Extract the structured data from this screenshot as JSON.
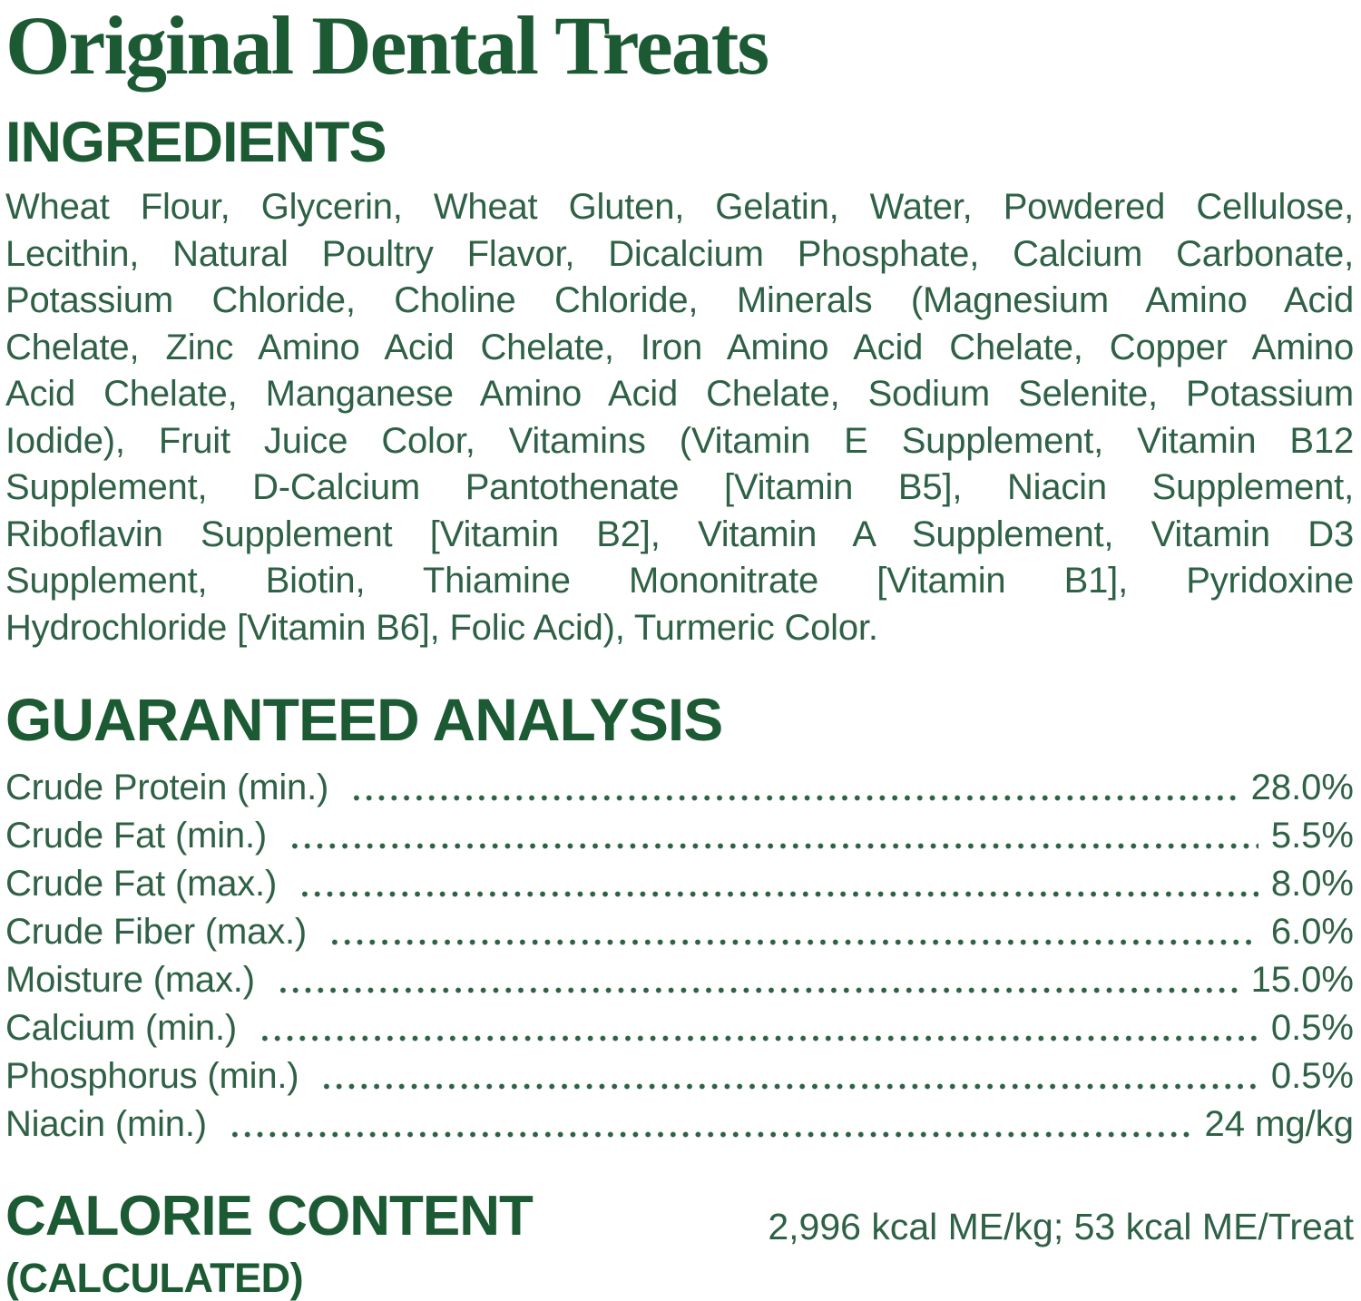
{
  "colors": {
    "ink_heading": "#1c5a34",
    "ink_body": "#2e6145",
    "background": "#ffffff"
  },
  "label": {
    "title": "Original Dental Treats",
    "ingredients": {
      "heading": "INGREDIENTS",
      "lines": [
        "Wheat Flour, Glycerin, Wheat Gluten, Gelatin, Water, Powdered Cellulose,",
        "Lecithin, Natural Poultry Flavor, Dicalcium Phosphate, Calcium Carbonate,",
        "Potassium Chloride, Choline Chloride, Minerals (Magnesium Amino Acid",
        "Chelate, Zinc Amino Acid Chelate, Iron Amino Acid Chelate, Copper Amino",
        "Acid Chelate, Manganese Amino Acid Chelate, Sodium Selenite, Potassium",
        "Iodide), Fruit Juice Color, Vitamins (Vitamin E Supplement, Vitamin B12",
        "Supplement, D-Calcium Pantothenate [Vitamin B5], Niacin Supplement,",
        "Riboflavin Supplement [Vitamin B2], Vitamin A Supplement, Vitamin D3",
        "Supplement, Biotin, Thiamine Mononitrate [Vitamin B1], Pyridoxine",
        "Hydrochloride [Vitamin B6], Folic Acid), Turmeric Color."
      ]
    },
    "guaranteed_analysis": {
      "heading": "GUARANTEED ANALYSIS",
      "rows": [
        {
          "label": "Crude Protein (min.)",
          "value": "28.0%"
        },
        {
          "label": "Crude Fat (min.)",
          "value": "5.5%"
        },
        {
          "label": "Crude Fat (max.)",
          "value": "8.0%"
        },
        {
          "label": "Crude Fiber (max.)",
          "value": "6.0%"
        },
        {
          "label": "Moisture (max.)",
          "value": "15.0%"
        },
        {
          "label": "Calcium (min.)",
          "value": "0.5%"
        },
        {
          "label": "Phosphorus (min.)",
          "value": "0.5%"
        },
        {
          "label": "Niacin (min.)",
          "value": "24 mg/kg"
        }
      ]
    },
    "calorie_content": {
      "heading": "CALORIE CONTENT",
      "subheading": "(CALCULATED)",
      "value": "2,996 kcal ME/kg; 53 kcal ME/Treat"
    }
  }
}
